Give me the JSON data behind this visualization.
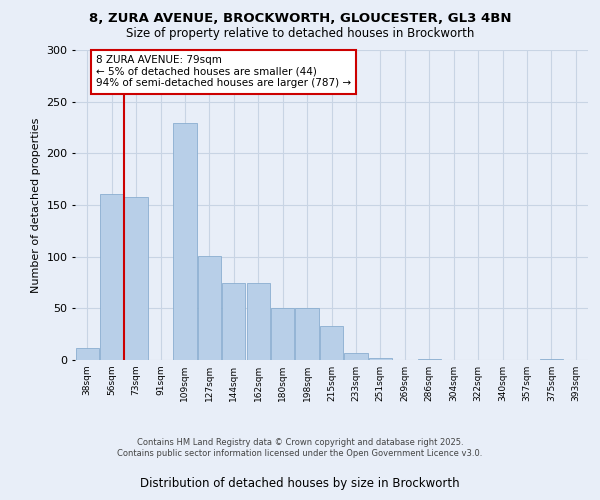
{
  "title_line1": "8, ZURA AVENUE, BROCKWORTH, GLOUCESTER, GL3 4BN",
  "title_line2": "Size of property relative to detached houses in Brockworth",
  "xlabel": "Distribution of detached houses by size in Brockworth",
  "ylabel": "Number of detached properties",
  "categories": [
    "38sqm",
    "56sqm",
    "73sqm",
    "91sqm",
    "109sqm",
    "127sqm",
    "144sqm",
    "162sqm",
    "180sqm",
    "198sqm",
    "215sqm",
    "233sqm",
    "251sqm",
    "269sqm",
    "286sqm",
    "304sqm",
    "322sqm",
    "340sqm",
    "357sqm",
    "375sqm",
    "393sqm"
  ],
  "values": [
    12,
    161,
    158,
    0,
    229,
    101,
    75,
    75,
    50,
    50,
    33,
    7,
    2,
    0,
    1,
    0,
    0,
    0,
    0,
    1,
    0
  ],
  "bar_color": "#b8cfe8",
  "bar_edge_color": "#8aaed0",
  "vline_x": 2.0,
  "vline_color": "#cc0000",
  "annotation_text": "8 ZURA AVENUE: 79sqm\n← 5% of detached houses are smaller (44)\n94% of semi-detached houses are larger (787) →",
  "annotation_box_color": "#ffffff",
  "annotation_box_edge_color": "#cc0000",
  "grid_color": "#c8d4e4",
  "background_color": "#e8eef8",
  "footer_text": "Contains HM Land Registry data © Crown copyright and database right 2025.\nContains public sector information licensed under the Open Government Licence v3.0.",
  "ylim": [
    0,
    300
  ],
  "yticks": [
    0,
    50,
    100,
    150,
    200,
    250,
    300
  ],
  "figsize": [
    6.0,
    5.0
  ],
  "dpi": 100
}
